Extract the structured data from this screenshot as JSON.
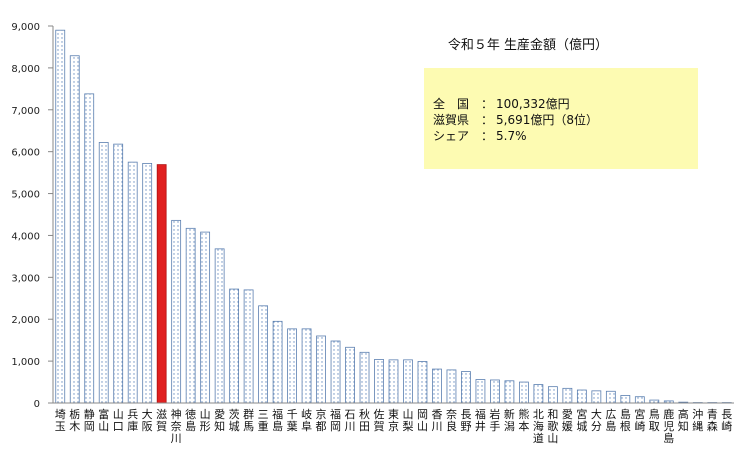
{
  "chart_data": {
    "type": "bar",
    "title": "令和５年 生産金額（億円）",
    "ylim": [
      0,
      9000
    ],
    "yticks": [
      "0",
      "1,000",
      "2,000",
      "3,000",
      "4,000",
      "5,000",
      "6,000",
      "7,000",
      "8,000",
      "9,000"
    ],
    "ytick_values": [
      0,
      1000,
      2000,
      3000,
      4000,
      5000,
      6000,
      7000,
      8000,
      9000
    ],
    "categories": [
      "埼玉",
      "栃木",
      "静岡",
      "富山",
      "山口",
      "兵庫",
      "大阪",
      "滋賀",
      "神奈川",
      "徳島",
      "山形",
      "愛知",
      "茨城",
      "群馬",
      "三重",
      "福島",
      "千葉",
      "岐阜",
      "京都",
      "福岡",
      "石川",
      "秋田",
      "佐賀",
      "東京",
      "山梨",
      "岡山",
      "香川",
      "奈良",
      "長野",
      "福井",
      "岩手",
      "新潟",
      "熊本",
      "北海道",
      "和歌山",
      "愛媛",
      "宮城",
      "大分",
      "広島",
      "島根",
      "宮崎",
      "鳥取",
      "鹿児島",
      "高知",
      "沖縄",
      "青森",
      "長崎"
    ],
    "values": [
      8900,
      8290,
      7380,
      6220,
      6180,
      5750,
      5720,
      5691,
      4360,
      4170,
      4080,
      3680,
      2720,
      2700,
      2320,
      1950,
      1770,
      1770,
      1600,
      1480,
      1330,
      1210,
      1040,
      1030,
      1030,
      990,
      810,
      790,
      750,
      560,
      550,
      530,
      500,
      440,
      390,
      350,
      310,
      290,
      280,
      180,
      150,
      70,
      50,
      20,
      10,
      10,
      10
    ],
    "highlight_index": 7,
    "colors": {
      "bar_border": "#5b7fb0",
      "bar_dot": "#6a8fc0",
      "highlight": "#e02020",
      "info_box": "#fdfbb2",
      "axis": "#888888"
    },
    "grid": false,
    "legend": "none",
    "info_box": {
      "lines": [
        [
          "全　国",
          "：",
          "100,332億円"
        ],
        [
          "滋賀県",
          "：",
          "5,691億円（8位）"
        ],
        [
          "シェア",
          "：",
          "5.7%"
        ]
      ]
    }
  }
}
